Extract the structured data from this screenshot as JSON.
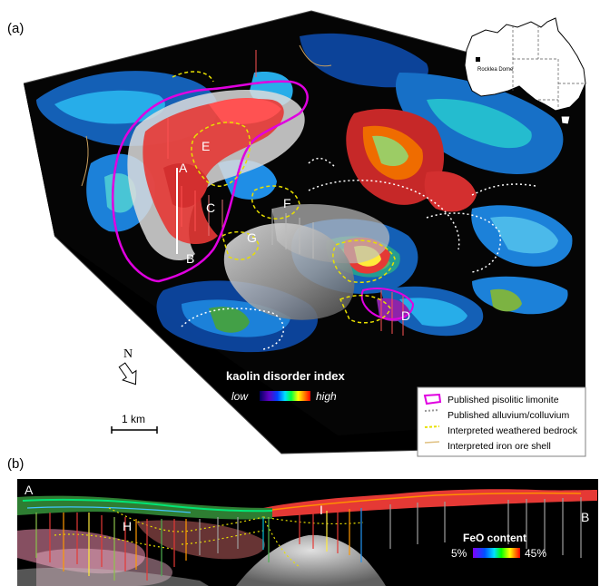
{
  "panel_a": {
    "label": "(a)",
    "points": [
      "A",
      "B",
      "C",
      "D",
      "E",
      "F",
      "G"
    ],
    "north": "N",
    "scale": "1 km",
    "colorbar": {
      "title": "kaolin disorder index",
      "low": "low",
      "high": "high"
    },
    "legend": [
      {
        "label": "Published pisolitic limonite",
        "color": "#e000e0"
      },
      {
        "label": "Published alluvium/colluvium",
        "color": "#cccccc"
      },
      {
        "label": "Interpreted weathered bedrock",
        "color": "#e8e000"
      },
      {
        "label": "Interpreted iron ore shell",
        "color": "#f0e0a0"
      }
    ],
    "inset": {
      "place": "Rocklea Dome"
    }
  },
  "panel_b": {
    "label": "(b)",
    "left": "A",
    "right": "B",
    "points": [
      "H",
      "I"
    ],
    "colorbar": {
      "title": "FeO content",
      "low": "5%",
      "high": "45%"
    }
  }
}
